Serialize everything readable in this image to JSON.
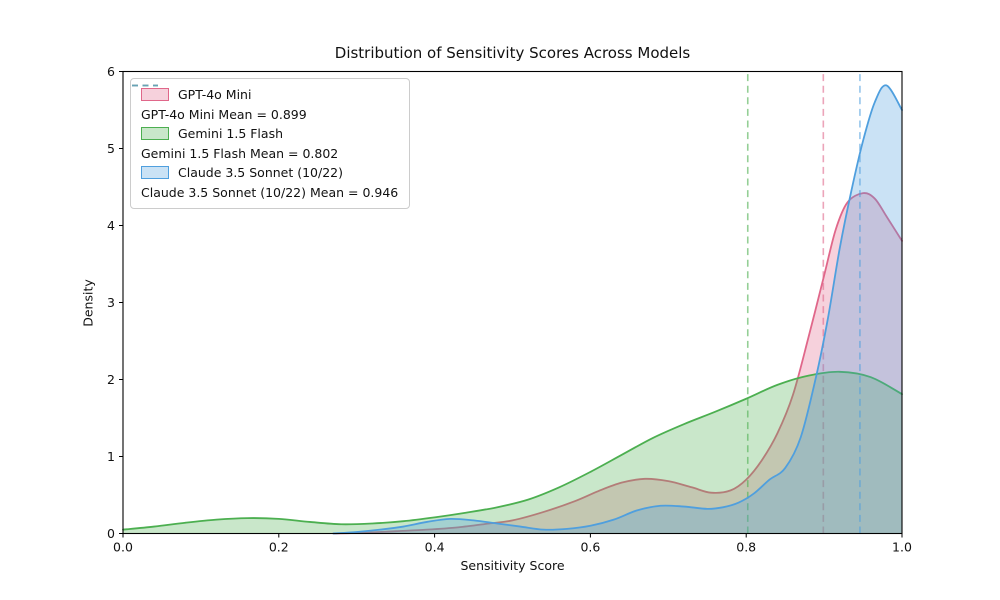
{
  "chart_data": {
    "type": "area",
    "kind": "kde-density",
    "title": "Distribution of Sensitivity Scores Across Models",
    "xlabel": "Sensitivity Score",
    "ylabel": "Density",
    "xlim": [
      0.0,
      1.0
    ],
    "ylim": [
      0,
      6
    ],
    "xtick_labels": [
      "0.0",
      "0.2",
      "0.4",
      "0.6",
      "0.8",
      "1.0"
    ],
    "ytick_labels": [
      "0",
      "1",
      "2",
      "3",
      "4",
      "5",
      "6"
    ],
    "grid": false,
    "legend_position": "upper left",
    "axes_color": "#000000",
    "background_color": "#ffffff",
    "fill_opacity": 0.3,
    "mean_line_opacity": 0.6,
    "series": [
      {
        "name": "GPT-4o Mini",
        "legend_label": "GPT-4o Mini",
        "mean": 0.899,
        "mean_legend_label": "GPT-4o Mini Mean = 0.899",
        "color": "#e0678a",
        "points": [
          [
            0.27,
            0.0
          ],
          [
            0.31,
            0.01
          ],
          [
            0.35,
            0.03
          ],
          [
            0.39,
            0.05
          ],
          [
            0.43,
            0.08
          ],
          [
            0.47,
            0.13
          ],
          [
            0.5,
            0.17
          ],
          [
            0.54,
            0.28
          ],
          [
            0.58,
            0.42
          ],
          [
            0.61,
            0.55
          ],
          [
            0.64,
            0.66
          ],
          [
            0.67,
            0.71
          ],
          [
            0.7,
            0.68
          ],
          [
            0.73,
            0.6
          ],
          [
            0.755,
            0.53
          ],
          [
            0.78,
            0.56
          ],
          [
            0.8,
            0.7
          ],
          [
            0.82,
            0.95
          ],
          [
            0.84,
            1.3
          ],
          [
            0.86,
            1.8
          ],
          [
            0.88,
            2.55
          ],
          [
            0.9,
            3.35
          ],
          [
            0.915,
            3.95
          ],
          [
            0.93,
            4.3
          ],
          [
            0.95,
            4.42
          ],
          [
            0.965,
            4.35
          ],
          [
            0.98,
            4.12
          ],
          [
            1.0,
            3.8
          ]
        ]
      },
      {
        "name": "Gemini 1.5 Flash",
        "legend_label": "Gemini 1.5 Flash",
        "mean": 0.802,
        "mean_legend_label": "Gemini 1.5 Flash Mean = 0.802",
        "color": "#4caf50",
        "points": [
          [
            0.0,
            0.05
          ],
          [
            0.04,
            0.09
          ],
          [
            0.08,
            0.14
          ],
          [
            0.12,
            0.18
          ],
          [
            0.16,
            0.2
          ],
          [
            0.2,
            0.19
          ],
          [
            0.24,
            0.15
          ],
          [
            0.28,
            0.12
          ],
          [
            0.32,
            0.13
          ],
          [
            0.36,
            0.16
          ],
          [
            0.4,
            0.21
          ],
          [
            0.44,
            0.27
          ],
          [
            0.48,
            0.34
          ],
          [
            0.52,
            0.44
          ],
          [
            0.56,
            0.6
          ],
          [
            0.6,
            0.8
          ],
          [
            0.64,
            1.02
          ],
          [
            0.68,
            1.24
          ],
          [
            0.72,
            1.42
          ],
          [
            0.76,
            1.58
          ],
          [
            0.8,
            1.75
          ],
          [
            0.84,
            1.93
          ],
          [
            0.88,
            2.05
          ],
          [
            0.92,
            2.1
          ],
          [
            0.96,
            2.03
          ],
          [
            1.0,
            1.81
          ]
        ]
      },
      {
        "name": "Claude 3.5 Sonnet (10/22)",
        "legend_label": "Claude 3.5 Sonnet (10/22)",
        "mean": 0.946,
        "mean_legend_label": "Claude 3.5 Sonnet (10/22) Mean = 0.946",
        "color": "#4f9fde",
        "points": [
          [
            0.27,
            0.0
          ],
          [
            0.3,
            0.02
          ],
          [
            0.33,
            0.05
          ],
          [
            0.36,
            0.09
          ],
          [
            0.39,
            0.15
          ],
          [
            0.42,
            0.19
          ],
          [
            0.45,
            0.17
          ],
          [
            0.48,
            0.13
          ],
          [
            0.51,
            0.09
          ],
          [
            0.54,
            0.05
          ],
          [
            0.57,
            0.06
          ],
          [
            0.6,
            0.1
          ],
          [
            0.63,
            0.18
          ],
          [
            0.66,
            0.3
          ],
          [
            0.69,
            0.36
          ],
          [
            0.72,
            0.35
          ],
          [
            0.75,
            0.32
          ],
          [
            0.77,
            0.34
          ],
          [
            0.79,
            0.4
          ],
          [
            0.81,
            0.52
          ],
          [
            0.83,
            0.7
          ],
          [
            0.85,
            0.85
          ],
          [
            0.87,
            1.25
          ],
          [
            0.89,
            2.05
          ],
          [
            0.905,
            2.8
          ],
          [
            0.92,
            3.7
          ],
          [
            0.935,
            4.45
          ],
          [
            0.95,
            5.1
          ],
          [
            0.965,
            5.6
          ],
          [
            0.98,
            5.82
          ],
          [
            1.0,
            5.5
          ]
        ]
      }
    ]
  }
}
